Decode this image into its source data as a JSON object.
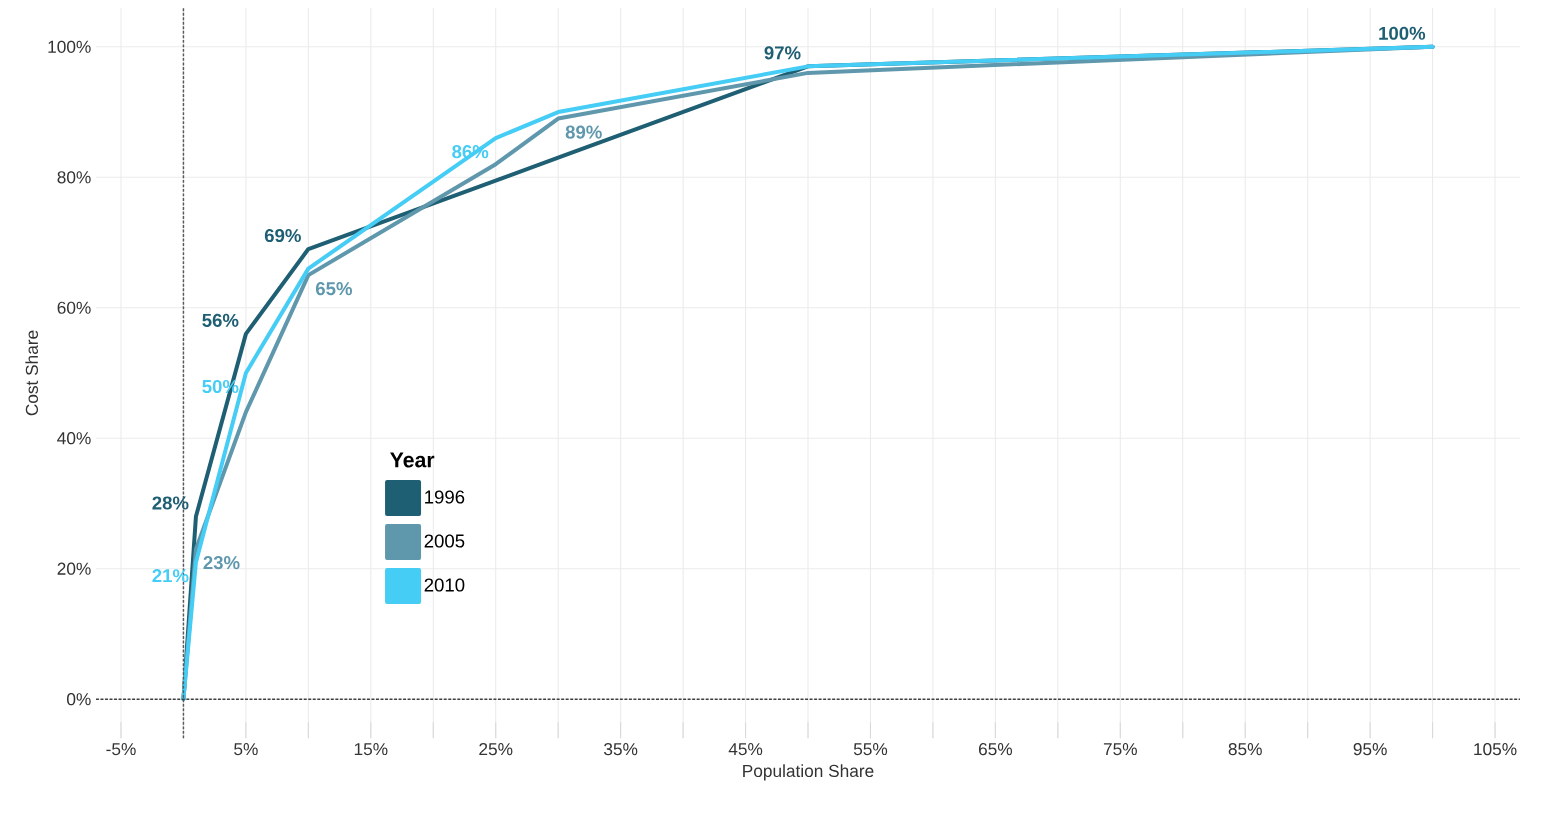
{
  "chart_data": {
    "type": "line",
    "xlabel": "Population Share",
    "ylabel": "Cost Share",
    "legend_title": "Year",
    "legend": "bottom left",
    "grid": true,
    "marker": "none",
    "xlim": [
      -7,
      107
    ],
    "ylim": [
      -6,
      106
    ],
    "xticks": [
      {
        "value": -5,
        "label": "-5%"
      },
      {
        "value": 0,
        "label": null
      },
      {
        "value": 5,
        "label": "5%"
      },
      {
        "value": 10,
        "label": null
      },
      {
        "value": 15,
        "label": "15%"
      },
      {
        "value": 20,
        "label": null
      },
      {
        "value": 25,
        "label": "25%"
      },
      {
        "value": 30,
        "label": null
      },
      {
        "value": 35,
        "label": "35%"
      },
      {
        "value": 40,
        "label": null
      },
      {
        "value": 45,
        "label": "45%"
      },
      {
        "value": 50,
        "label": null
      },
      {
        "value": 55,
        "label": "55%"
      },
      {
        "value": 60,
        "label": null
      },
      {
        "value": 65,
        "label": "65%"
      },
      {
        "value": 70,
        "label": null
      },
      {
        "value": 75,
        "label": "75%"
      },
      {
        "value": 80,
        "label": null
      },
      {
        "value": 85,
        "label": "85%"
      },
      {
        "value": 90,
        "label": null
      },
      {
        "value": 95,
        "label": "95%"
      },
      {
        "value": 100,
        "label": null
      },
      {
        "value": 105,
        "label": "105%"
      }
    ],
    "yticks": [
      {
        "value": 0,
        "label": "0%"
      },
      {
        "value": 20,
        "label": "20%"
      },
      {
        "value": 40,
        "label": "40%"
      },
      {
        "value": 60,
        "label": "60%"
      },
      {
        "value": 80,
        "label": "80%"
      },
      {
        "value": 100,
        "label": "100%"
      }
    ],
    "ref_lines": [
      {
        "axis": "x",
        "value": 0,
        "line_style": "dotted"
      },
      {
        "axis": "y",
        "value": 0,
        "line_style": "dotted"
      }
    ],
    "series": [
      {
        "name": "1996",
        "color": "#1f5f73",
        "x": [
          0,
          1,
          5,
          10,
          30,
          50,
          100
        ],
        "values": [
          0,
          28,
          56,
          69,
          83,
          97,
          100
        ],
        "value_labels": [
          null,
          "28%",
          "56%",
          "69%",
          null,
          "97%",
          "100%"
        ]
      },
      {
        "name": "2005",
        "color": "#5f97ad",
        "x": [
          0,
          1,
          5,
          10,
          25,
          30,
          50,
          100
        ],
        "values": [
          0,
          23,
          44,
          65,
          82,
          89,
          96,
          100
        ],
        "value_labels": [
          null,
          "23%",
          null,
          "65%",
          null,
          "89%",
          null,
          null
        ]
      },
      {
        "name": "2010",
        "color": "#45cdf5",
        "x": [
          0,
          1,
          5,
          10,
          25,
          30,
          50,
          100
        ],
        "values": [
          0,
          21,
          50,
          66,
          86,
          90,
          97,
          100
        ],
        "value_labels": [
          null,
          "21%",
          "50%",
          null,
          "86%",
          null,
          null,
          null
        ]
      }
    ]
  }
}
